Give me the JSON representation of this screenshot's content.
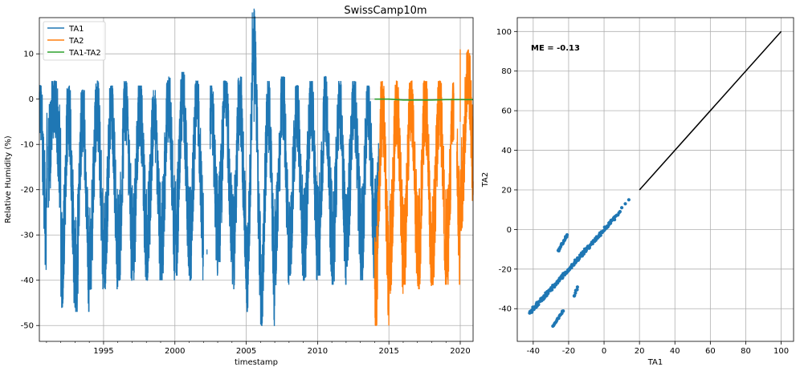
{
  "chart_data": [
    {
      "type": "line",
      "title": "SwissCamp10m",
      "xlabel": "timestamp",
      "ylabel": "Relative Humidity (%)",
      "xlim": [
        1990.5,
        2020.9
      ],
      "ylim": [
        -53.5,
        18
      ],
      "x_ticks": [
        1995,
        2000,
        2005,
        2010,
        2015,
        2020
      ],
      "y_ticks": [
        10,
        0,
        -10,
        -20,
        -30,
        -40,
        -50
      ],
      "grid": true,
      "legend": "top-left",
      "series": [
        {
          "name": "TA1",
          "color": "#1f77b4",
          "x_range": [
            1990.5,
            2014.3
          ],
          "summer_max_by_year": [
            [
              1991,
              4
            ],
            [
              1992,
              3
            ],
            [
              1993,
              2
            ],
            [
              1994,
              4
            ],
            [
              1995,
              3
            ],
            [
              1996,
              4
            ],
            [
              1997,
              3
            ],
            [
              1998,
              2
            ],
            [
              1999,
              5
            ],
            [
              2000,
              6
            ],
            [
              2001,
              4
            ],
            [
              2002,
              3
            ],
            [
              2003,
              4
            ],
            [
              2004,
              5
            ],
            [
              2005,
              20
            ],
            [
              2006,
              4
            ],
            [
              2007,
              5
            ],
            [
              2008,
              3
            ],
            [
              2009,
              4
            ],
            [
              2010,
              5
            ],
            [
              2011,
              4
            ],
            [
              2012,
              4
            ],
            [
              2013,
              3
            ],
            [
              2014,
              2
            ]
          ],
          "winter_min_by_year": [
            [
              1991,
              -24
            ],
            [
              1992,
              -46
            ],
            [
              1993,
              -47
            ],
            [
              1994,
              -42
            ],
            [
              1995,
              -42
            ],
            [
              1996,
              -40
            ],
            [
              1997,
              -40
            ],
            [
              1998,
              -40
            ],
            [
              1999,
              -40
            ],
            [
              2000,
              -39
            ],
            [
              2001,
              -40
            ],
            [
              2002,
              -39
            ],
            [
              2003,
              -36
            ],
            [
              2004,
              -42
            ],
            [
              2005,
              -47
            ],
            [
              2006,
              -50
            ],
            [
              2007,
              -41
            ],
            [
              2008,
              -39
            ],
            [
              2009,
              -40
            ],
            [
              2010,
              -39
            ],
            [
              2011,
              -41
            ],
            [
              2012,
              -37
            ],
            [
              2013,
              -40
            ],
            [
              2014,
              -38
            ]
          ]
        },
        {
          "name": "TA2",
          "color": "#ff7f0e",
          "x_range": [
            2014.0,
            2020.9
          ],
          "summer_max_by_year": [
            [
              2014,
              4
            ],
            [
              2015,
              4
            ],
            [
              2016,
              4
            ],
            [
              2017,
              4
            ],
            [
              2018,
              4
            ],
            [
              2019,
              4
            ],
            [
              2020,
              11
            ]
          ],
          "winter_min_by_year": [
            [
              2014,
              -50
            ],
            [
              2015,
              -43
            ],
            [
              2016,
              -41
            ],
            [
              2017,
              -42
            ],
            [
              2018,
              -41
            ],
            [
              2019,
              -41
            ],
            [
              2020,
              -29
            ]
          ]
        },
        {
          "name": "TA1-TA2",
          "color": "#2ca02c",
          "points": [
            [
              2014.0,
              0
            ],
            [
              2015.0,
              0
            ],
            [
              2016.0,
              -0.2
            ],
            [
              2017.0,
              -0.2
            ],
            [
              2018.0,
              -0.2
            ],
            [
              2019.0,
              -0.1
            ],
            [
              2020.9,
              -0.1
            ]
          ]
        }
      ]
    },
    {
      "type": "scatter",
      "title": "",
      "xlabel": "TA1",
      "ylabel": "TA2",
      "xlim": [
        -49,
        107
      ],
      "ylim": [
        -56.5,
        107
      ],
      "x_ticks": [
        -40,
        -20,
        0,
        20,
        40,
        60,
        80,
        100
      ],
      "y_ticks": [
        100,
        80,
        60,
        40,
        20,
        0,
        -20,
        -40
      ],
      "grid": true,
      "annotation": "ME = -0.13",
      "series": [
        {
          "name": "",
          "color": "#1f77b4",
          "description": "points cluster along 1:1 line from about (-42,-42) to (15,15), plus outliers",
          "main_range": [
            -42,
            6
          ],
          "upper_branch": [
            [
              -26,
              -11
            ],
            [
              -21,
              -3
            ]
          ],
          "lower_branch": [
            [
              -29,
              -49
            ],
            [
              -23,
              -41
            ]
          ],
          "right_branch": [
            [
              -17,
              -34
            ],
            [
              -15,
              -29
            ]
          ],
          "tail_points": [
            [
              10,
              11
            ],
            [
              12,
              13
            ],
            [
              14,
              15
            ]
          ]
        },
        {
          "name": "",
          "color": "#000000",
          "type": "line",
          "points": [
            [
              20,
              20
            ],
            [
              100,
              100
            ]
          ]
        }
      ]
    }
  ]
}
